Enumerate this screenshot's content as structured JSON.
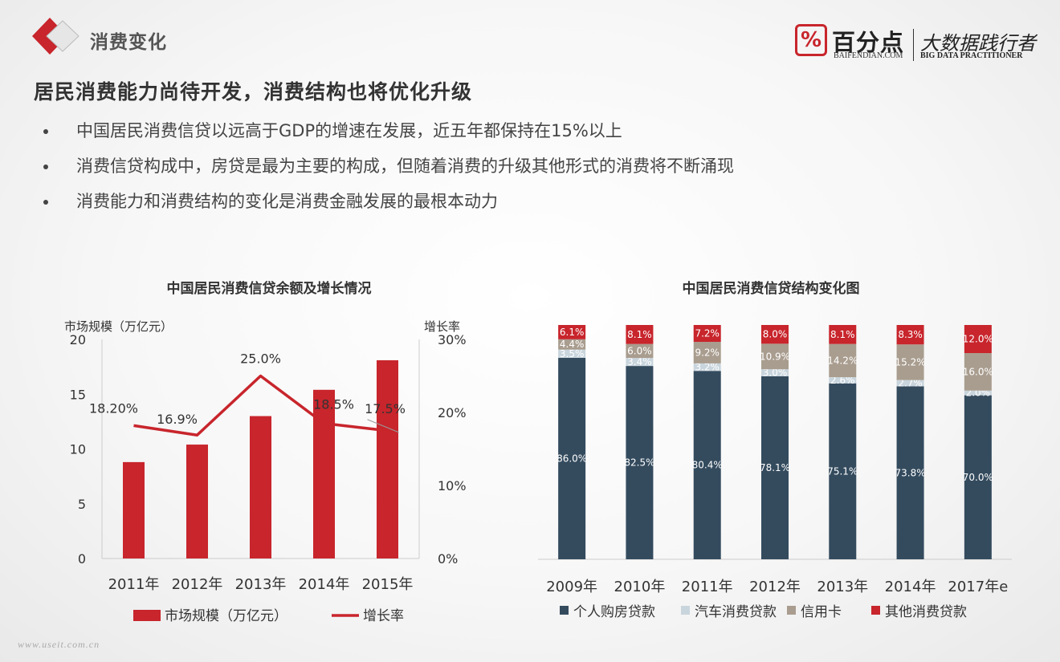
{
  "header": {
    "section_title": "消费变化"
  },
  "brand": {
    "logo_glyph": "%",
    "name": "百分点",
    "domain": "BAIFENDIAN.COM",
    "slogan": "大数据践行者",
    "slogan_en": "BIG DATA PRACTITIONER"
  },
  "headline": "居民消费能力尚待开发，消费结构也将优化升级",
  "bullets": [
    "中国居民消费信贷以远高于GDP的增速在发展，近五年都保持在15%以上",
    "消费信贷构成中，房贷是最为主要的构成，但随着消费的升级其他形式的消费将不断涌现",
    "消费能力和消费结构的变化是消费金融发展的最根本动力"
  ],
  "watermark": "www.useit.com.cn",
  "colors": {
    "bar_red": "#c8252c",
    "dark": "#344b5e",
    "light": "#c9d5dd",
    "tan": "#a99d8f",
    "red": "#c8252c"
  },
  "chart_data": [
    {
      "type": "bar+line",
      "title": "中国居民消费信贷余额及增长情况",
      "ylabel_left": "市场规模（万亿元）",
      "ylabel_right": "增长率",
      "categories": [
        "2011年",
        "2012年",
        "2013年",
        "2014年",
        "2015年"
      ],
      "ylim_left": [
        0,
        20
      ],
      "yticks_left": [
        "0",
        "5",
        "10",
        "15",
        "20"
      ],
      "ylim_right": [
        0,
        30
      ],
      "yticks_right": [
        "0%",
        "10%",
        "20%",
        "30%"
      ],
      "series": [
        {
          "name": "市场规模（万亿元）",
          "kind": "bar",
          "axis": "left",
          "values": [
            8.8,
            10.4,
            13.0,
            15.4,
            18.1
          ]
        },
        {
          "name": "增长率",
          "kind": "line",
          "axis": "right",
          "values": [
            18.2,
            16.9,
            25.0,
            18.5,
            17.5
          ],
          "labels": [
            "18.20%",
            "16.9%",
            "25.0%",
            "18.5%",
            "17.5%"
          ]
        }
      ],
      "legend_position": "bottom"
    },
    {
      "type": "stacked-bar",
      "title": "中国居民消费信贷结构变化图",
      "categories": [
        "2009年",
        "2010年",
        "2011年",
        "2012年",
        "2013年",
        "2014年",
        "2017年e"
      ],
      "series": [
        {
          "name": "个人购房贷款",
          "color": "#344b5e",
          "values": [
            86.0,
            82.5,
            80.4,
            78.1,
            75.1,
            73.8,
            70.0
          ],
          "labels": [
            "86.0%",
            "82.5%",
            "80.4%",
            "78.1%",
            "75.1%",
            "73.8%",
            "70.0%"
          ]
        },
        {
          "name": "汽车消费贷款",
          "color": "#c9d5dd",
          "values": [
            3.5,
            3.4,
            3.2,
            3.0,
            2.6,
            2.7,
            2.0
          ],
          "labels": [
            "3.5%",
            "3.4%",
            "3.2%",
            "3.0%",
            "2.6%",
            "2.7%",
            "2.0%"
          ]
        },
        {
          "name": "信用卡",
          "color": "#a99d8f",
          "values": [
            4.4,
            6.0,
            9.2,
            10.9,
            14.2,
            15.2,
            16.0
          ],
          "labels": [
            "4.4%",
            "6.0%",
            "9.2%",
            "10.9%",
            "14.2%",
            "15.2%",
            "16.0%"
          ]
        },
        {
          "name": "其他消费贷款",
          "color": "#c8252c",
          "values": [
            6.1,
            8.1,
            7.2,
            8.0,
            8.1,
            8.3,
            12.0
          ],
          "labels": [
            "6.1%",
            "8.1%",
            "7.2%",
            "8.0%",
            "8.1%",
            "8.3%",
            "12.0%"
          ]
        }
      ],
      "ylim": [
        0,
        100
      ],
      "legend_position": "bottom"
    }
  ]
}
